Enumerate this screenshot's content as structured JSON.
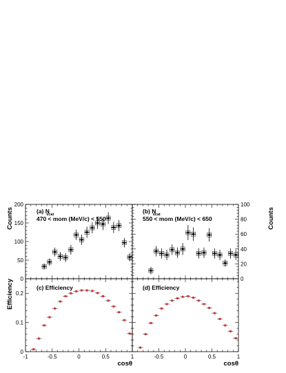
{
  "figure": {
    "left_axis_title": "Counts",
    "right_axis_title": "Counts",
    "bottom_axis_title": "Efficiency",
    "x_axis_title": "cosθ"
  },
  "chart_data": [
    {
      "type": "scatter",
      "panel": "a",
      "title": "(a) N",
      "title_sup": "scat",
      "subtitle": "470 < mom (MeV/c) < 550",
      "xlim": [
        -1,
        1
      ],
      "ylim": [
        0,
        200
      ],
      "yticks": [
        0,
        50,
        100,
        150,
        200
      ],
      "ylabel": "Counts",
      "xerr": 0.05,
      "x": [
        -0.65,
        -0.55,
        -0.45,
        -0.35,
        -0.25,
        -0.15,
        -0.05,
        0.05,
        0.15,
        0.25,
        0.35,
        0.45,
        0.55,
        0.65,
        0.75,
        0.85,
        0.95
      ],
      "y": [
        33,
        45,
        72,
        60,
        57,
        78,
        118,
        105,
        125,
        137,
        150,
        147,
        163,
        138,
        143,
        97,
        58
      ],
      "yerr": [
        8,
        10,
        12,
        12,
        12,
        13,
        14,
        14,
        15,
        15,
        16,
        16,
        16,
        15,
        15,
        13,
        11
      ]
    },
    {
      "type": "scatter",
      "panel": "b",
      "title": "(b) N",
      "title_sup": "scat",
      "subtitle": "550 < mom (MeV/c) < 650",
      "xlim": [
        -1,
        1
      ],
      "ylim": [
        0,
        100
      ],
      "yticks": [
        0,
        20,
        40,
        60,
        80,
        100
      ],
      "ylabel": "Counts",
      "xerr": 0.05,
      "x": [
        -0.65,
        -0.55,
        -0.45,
        -0.35,
        -0.25,
        -0.15,
        -0.05,
        0.05,
        0.15,
        0.25,
        0.35,
        0.45,
        0.55,
        0.65,
        0.75,
        0.85,
        0.95
      ],
      "y": [
        11,
        37,
        34,
        32,
        39,
        35,
        40,
        62,
        60,
        34,
        35,
        59,
        34,
        32,
        21,
        34,
        32
      ],
      "yerr": [
        5,
        7,
        7,
        7,
        7,
        7,
        8,
        10,
        9,
        7,
        7,
        9,
        7,
        7,
        5,
        7,
        7
      ]
    },
    {
      "type": "scatter",
      "panel": "c",
      "title": "(c) Efficiency",
      "xlim": [
        -1,
        1
      ],
      "ylim": [
        0,
        0.25
      ],
      "yticks": [
        0,
        0.1,
        0.2
      ],
      "xticks": [
        -1,
        -0.5,
        0,
        0.5,
        1
      ],
      "xlabel": "cosθ",
      "ylabel": "Efficiency",
      "xerr": 0.05,
      "marker_color": "#d32f2f",
      "x": [
        -0.85,
        -0.75,
        -0.65,
        -0.55,
        -0.45,
        -0.35,
        -0.25,
        -0.15,
        -0.05,
        0.05,
        0.15,
        0.25,
        0.35,
        0.45,
        0.55,
        0.65,
        0.75,
        0.85,
        0.95
      ],
      "y": [
        0.008,
        0.045,
        0.09,
        0.118,
        0.148,
        0.172,
        0.19,
        0.2,
        0.207,
        0.21,
        0.21,
        0.208,
        0.201,
        0.19,
        0.175,
        0.155,
        0.135,
        0.108,
        0.062
      ]
    },
    {
      "type": "scatter",
      "panel": "d",
      "title": "(d) Efficiency",
      "xlim": [
        -1,
        1
      ],
      "ylim": [
        0,
        0.25
      ],
      "yticks": [
        0,
        0.1,
        0.2
      ],
      "xticks": [
        -1,
        -0.5,
        0,
        0.5,
        1
      ],
      "xlabel": "cosθ",
      "xerr": 0.05,
      "marker_color": "#d32f2f",
      "x": [
        -0.85,
        -0.75,
        -0.65,
        -0.55,
        -0.45,
        -0.35,
        -0.25,
        -0.15,
        -0.05,
        0.05,
        0.15,
        0.25,
        0.35,
        0.45,
        0.55,
        0.65,
        0.75,
        0.85,
        0.95
      ],
      "y": [
        0.014,
        0.06,
        0.098,
        0.124,
        0.148,
        0.163,
        0.175,
        0.183,
        0.188,
        0.19,
        0.185,
        0.175,
        0.163,
        0.15,
        0.132,
        0.112,
        0.09,
        0.07,
        0.046
      ]
    }
  ]
}
